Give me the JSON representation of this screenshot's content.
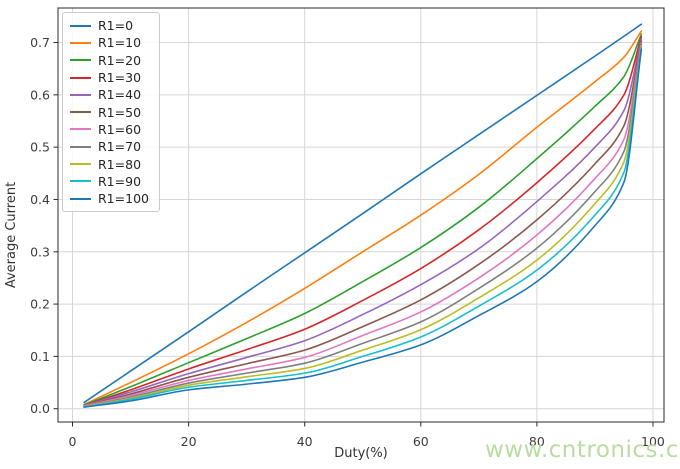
{
  "figure": {
    "watermark": {
      "text": "www.cntronics.com",
      "color": "#b9dca3"
    },
    "chart_data": {
      "type": "line",
      "title": "",
      "xlabel": "Duty(%)",
      "ylabel": "Average Current",
      "xlim": [
        -2.5,
        101.9
      ],
      "ylim": [
        -0.0254,
        0.766
      ],
      "xticks": [
        "0",
        "20",
        "40",
        "60",
        "80",
        "100"
      ],
      "xtick_values": [
        0,
        20,
        40,
        60,
        80,
        100
      ],
      "yticks": [
        "0.0",
        "0.1",
        "0.2",
        "0.3",
        "0.4",
        "0.5",
        "0.6",
        "0.7"
      ],
      "ytick_values": [
        0.0,
        0.1,
        0.2,
        0.3,
        0.4,
        0.5,
        0.6,
        0.7
      ],
      "grid": true,
      "grid_color": "#d6d6d6",
      "spine_color": "#2a2a2a",
      "legend_position": "upper-left",
      "x": [
        2,
        10,
        20,
        30,
        40,
        50,
        60,
        70,
        80,
        90,
        95,
        98
      ],
      "series": [
        {
          "name": "R1=0",
          "color": "#1f77b4",
          "values": [
            0.012,
            0.072,
            0.147,
            0.223,
            0.298,
            0.373,
            0.449,
            0.524,
            0.599,
            0.674,
            0.712,
            0.735
          ]
        },
        {
          "name": "R1=10",
          "color": "#ff7f0e",
          "values": [
            0.008,
            0.05,
            0.105,
            0.165,
            0.23,
            0.3,
            0.37,
            0.448,
            0.538,
            0.625,
            0.672,
            0.722
          ]
        },
        {
          "name": "R1=20",
          "color": "#2ca02c",
          "values": [
            0.007,
            0.042,
            0.088,
            0.134,
            0.182,
            0.243,
            0.308,
            0.385,
            0.478,
            0.578,
            0.635,
            0.716
          ]
        },
        {
          "name": "R1=30",
          "color": "#d62728",
          "values": [
            0.006,
            0.036,
            0.076,
            0.113,
            0.152,
            0.207,
            0.268,
            0.342,
            0.432,
            0.535,
            0.6,
            0.711
          ]
        },
        {
          "name": "R1=40",
          "color": "#9467bd",
          "values": [
            0.006,
            0.032,
            0.067,
            0.098,
            0.13,
            0.18,
            0.237,
            0.306,
            0.396,
            0.5,
            0.57,
            0.707
          ]
        },
        {
          "name": "R1=50",
          "color": "#8c564b",
          "values": [
            0.005,
            0.028,
            0.06,
            0.086,
            0.112,
            0.157,
            0.208,
            0.276,
            0.361,
            0.468,
            0.541,
            0.703
          ]
        },
        {
          "name": "R1=60",
          "color": "#e377c2",
          "values": [
            0.005,
            0.025,
            0.054,
            0.076,
            0.098,
            0.14,
            0.185,
            0.25,
            0.332,
            0.44,
            0.515,
            0.699
          ]
        },
        {
          "name": "R1=70",
          "color": "#7f7f7f",
          "values": [
            0.004,
            0.022,
            0.049,
            0.068,
            0.087,
            0.125,
            0.166,
            0.23,
            0.307,
            0.415,
            0.492,
            0.696
          ]
        },
        {
          "name": "R1=80",
          "color": "#bcbd22",
          "values": [
            0.004,
            0.02,
            0.045,
            0.061,
            0.077,
            0.112,
            0.151,
            0.212,
            0.284,
            0.392,
            0.472,
            0.693
          ]
        },
        {
          "name": "R1=90",
          "color": "#17becf",
          "values": [
            0.003,
            0.018,
            0.041,
            0.054,
            0.068,
            0.1,
            0.137,
            0.196,
            0.265,
            0.37,
            0.452,
            0.69
          ]
        },
        {
          "name": "R1=100",
          "color": "#1f77b4",
          "values": [
            0.003,
            0.015,
            0.036,
            0.047,
            0.06,
            0.089,
            0.122,
            0.178,
            0.243,
            0.35,
            0.433,
            0.687
          ]
        }
      ]
    }
  }
}
